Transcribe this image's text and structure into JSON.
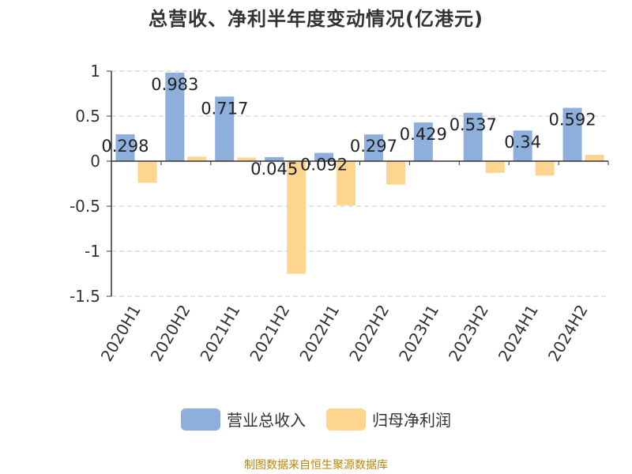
{
  "colors": {
    "revenue": "#8eaedb",
    "profit": "#fed58f",
    "grid": "#c8c8c8",
    "axis": "#333333"
  },
  "chart_data": {
    "type": "bar",
    "title": "总营收、净利半年度变动情况(亿港元)",
    "categories": [
      "2020H1",
      "2020H2",
      "2021H1",
      "2021H2",
      "2022H1",
      "2022H2",
      "2023H1",
      "2023H2",
      "2024H1",
      "2024H2"
    ],
    "series": [
      {
        "name": "营业总收入",
        "values": [
          0.298,
          0.983,
          0.717,
          0.045,
          0.092,
          0.297,
          0.429,
          0.537,
          0.34,
          0.592
        ],
        "labels": [
          "0.298",
          "0.983",
          "0.717",
          "0.045",
          "0.092",
          "0.297",
          "0.429",
          "0.537",
          "0.34",
          "0.592"
        ]
      },
      {
        "name": "归母净利润",
        "values": [
          -0.24,
          0.05,
          0.04,
          -1.25,
          -0.49,
          -0.26,
          0.0,
          -0.13,
          -0.16,
          0.07
        ]
      }
    ],
    "yticks": [
      "1",
      "0.5",
      "0",
      "-0.5",
      "-1",
      "-1.5"
    ],
    "ylim": [
      -1.5,
      1
    ],
    "grid": true,
    "legend_position": "bottom"
  },
  "source": "制图数据来自恒生聚源数据库"
}
